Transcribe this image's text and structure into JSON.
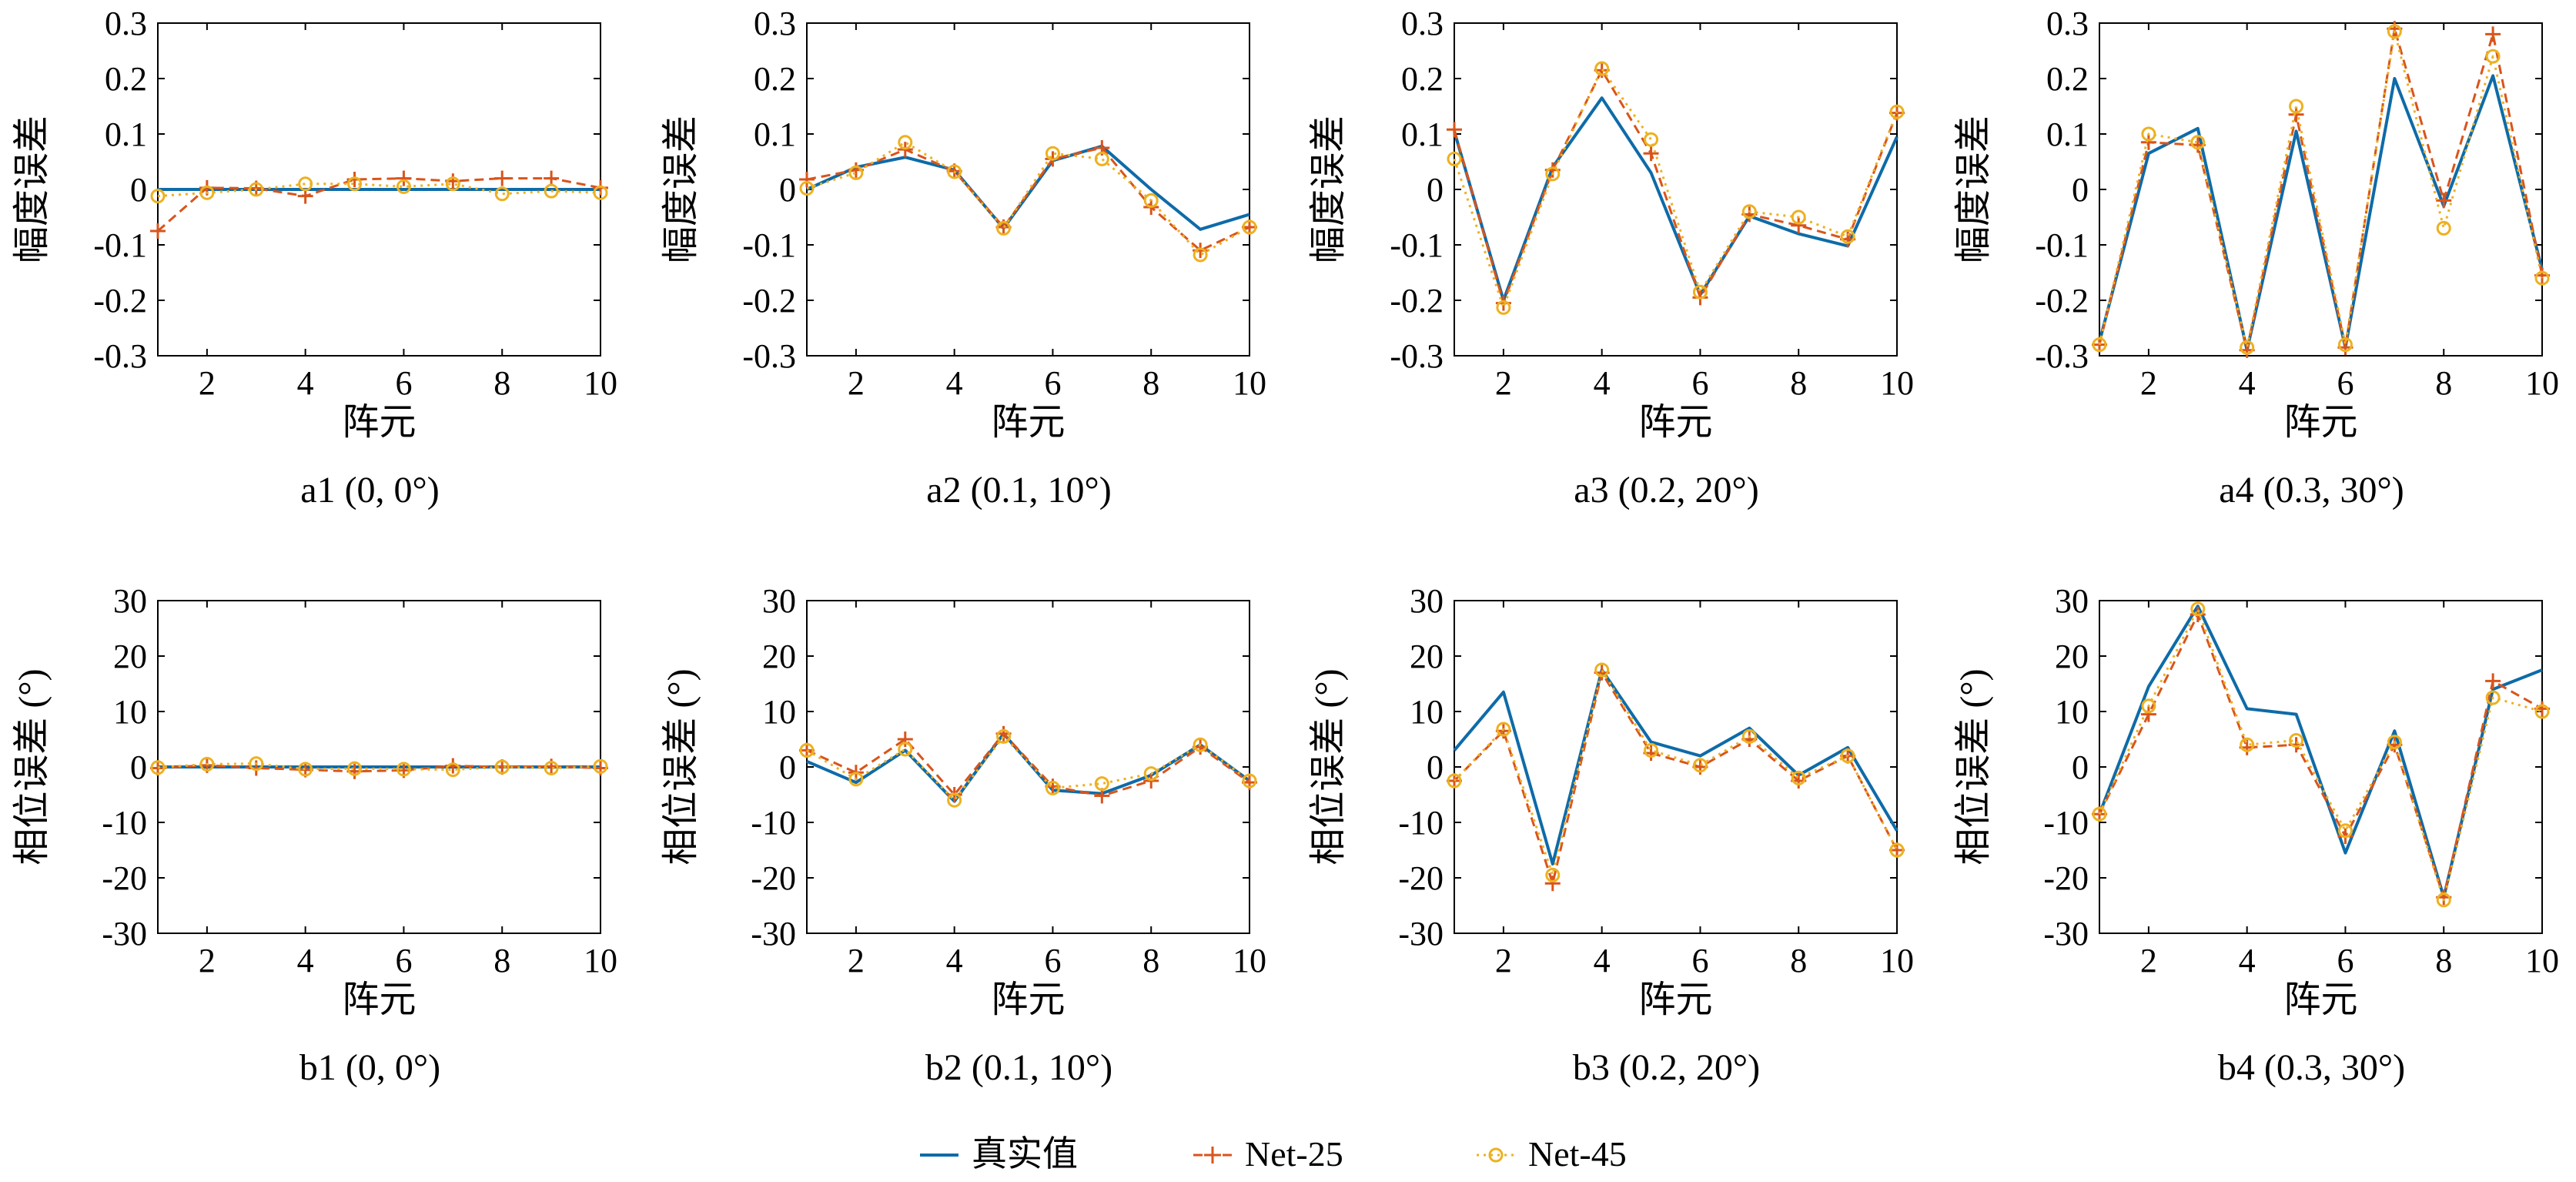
{
  "colors": {
    "truth": "#0e6ba8",
    "net25": "#d9541b",
    "net45": "#edb120"
  },
  "legend": {
    "truth": "真实值",
    "net25": "Net-25",
    "net45": "Net-45"
  },
  "chart_data": [
    {
      "type": "line",
      "caption": "a1 (0, 0°)",
      "xlabel": "阵元",
      "ylabel": "幅度误差",
      "xlim": [
        1,
        10
      ],
      "ylim": [
        -0.3,
        0.3
      ],
      "xticks": [
        "2",
        "4",
        "6",
        "8",
        "10"
      ],
      "yticks": [
        "0.3",
        "0.2",
        "0.1",
        "0",
        "-0.1",
        "-0.2",
        "-0.3"
      ],
      "x": [
        1,
        2,
        3,
        4,
        5,
        6,
        7,
        8,
        9,
        10
      ],
      "series": [
        {
          "name": "真实值",
          "values": [
            0,
            0,
            0,
            0,
            0,
            0,
            0,
            0,
            0,
            0
          ]
        },
        {
          "name": "Net-25",
          "values": [
            -0.075,
            0.003,
            0.002,
            -0.012,
            0.018,
            0.02,
            0.015,
            0.02,
            0.02,
            0.003
          ]
        },
        {
          "name": "Net-45",
          "values": [
            -0.012,
            -0.006,
            0.0,
            0.01,
            0.01,
            0.005,
            0.01,
            -0.008,
            -0.003,
            -0.006
          ]
        }
      ]
    },
    {
      "type": "line",
      "caption": "a2 (0.1, 10°)",
      "xlabel": "阵元",
      "ylabel": "幅度误差",
      "xlim": [
        1,
        10
      ],
      "ylim": [
        -0.3,
        0.3
      ],
      "xticks": [
        "2",
        "4",
        "6",
        "8",
        "10"
      ],
      "yticks": [
        "0.3",
        "0.2",
        "0.1",
        "0",
        "-0.1",
        "-0.2",
        "-0.3"
      ],
      "x": [
        1,
        2,
        3,
        4,
        5,
        6,
        7,
        8,
        9,
        10
      ],
      "series": [
        {
          "name": "真实值",
          "values": [
            0.0,
            0.04,
            0.058,
            0.035,
            -0.07,
            0.052,
            0.078,
            0.0,
            -0.072,
            -0.045
          ]
        },
        {
          "name": "Net-25",
          "values": [
            0.018,
            0.035,
            0.072,
            0.033,
            -0.068,
            0.055,
            0.075,
            -0.032,
            -0.11,
            -0.068
          ]
        },
        {
          "name": "Net-45",
          "values": [
            0.002,
            0.03,
            0.085,
            0.032,
            -0.07,
            0.065,
            0.055,
            -0.02,
            -0.118,
            -0.068
          ]
        }
      ]
    },
    {
      "type": "line",
      "caption": "a3 (0.2, 20°)",
      "xlabel": "阵元",
      "ylabel": "幅度误差",
      "xlim": [
        1,
        10
      ],
      "ylim": [
        -0.3,
        0.3
      ],
      "xticks": [
        "2",
        "4",
        "6",
        "8",
        "10"
      ],
      "yticks": [
        "0.3",
        "0.2",
        "0.1",
        "0",
        "-0.1",
        "-0.2",
        "-0.3"
      ],
      "x": [
        1,
        2,
        3,
        4,
        5,
        6,
        7,
        8,
        9,
        10
      ],
      "series": [
        {
          "name": "真实值",
          "values": [
            0.105,
            -0.2,
            0.04,
            0.165,
            0.03,
            -0.19,
            -0.048,
            -0.08,
            -0.102,
            0.095
          ]
        },
        {
          "name": "Net-25",
          "values": [
            0.108,
            -0.205,
            0.035,
            0.215,
            0.065,
            -0.195,
            -0.045,
            -0.065,
            -0.09,
            0.138
          ]
        },
        {
          "name": "Net-45",
          "values": [
            0.055,
            -0.213,
            0.028,
            0.218,
            0.09,
            -0.185,
            -0.04,
            -0.05,
            -0.085,
            0.14
          ]
        }
      ]
    },
    {
      "type": "line",
      "caption": "a4 (0.3, 30°)",
      "xlabel": "阵元",
      "ylabel": "幅度误差",
      "xlim": [
        1,
        10
      ],
      "ylim": [
        -0.3,
        0.3
      ],
      "xticks": [
        "2",
        "4",
        "6",
        "8",
        "10"
      ],
      "yticks": [
        "0.3",
        "0.2",
        "0.1",
        "0",
        "-0.1",
        "-0.2",
        "-0.3"
      ],
      "x": [
        1,
        2,
        3,
        4,
        5,
        6,
        7,
        8,
        9,
        10
      ],
      "series": [
        {
          "name": "真实值",
          "values": [
            -0.275,
            0.065,
            0.11,
            -0.29,
            0.105,
            -0.285,
            0.2,
            -0.03,
            0.205,
            -0.145
          ]
        },
        {
          "name": "Net-25",
          "values": [
            -0.28,
            0.085,
            0.08,
            -0.29,
            0.135,
            -0.285,
            0.29,
            -0.02,
            0.28,
            -0.155
          ]
        },
        {
          "name": "Net-45",
          "values": [
            -0.28,
            0.1,
            0.085,
            -0.285,
            0.15,
            -0.28,
            0.285,
            -0.07,
            0.24,
            -0.16
          ]
        }
      ]
    },
    {
      "type": "line",
      "caption": "b1 (0, 0°)",
      "xlabel": "阵元",
      "ylabel": "相位误差 (°)",
      "xlim": [
        1,
        10
      ],
      "ylim": [
        -30,
        30
      ],
      "xticks": [
        "2",
        "4",
        "6",
        "8",
        "10"
      ],
      "yticks": [
        "30",
        "20",
        "10",
        "0",
        "-10",
        "-20",
        "-30"
      ],
      "x": [
        1,
        2,
        3,
        4,
        5,
        6,
        7,
        8,
        9,
        10
      ],
      "series": [
        {
          "name": "真实值",
          "values": [
            0,
            0,
            0,
            0,
            0,
            0,
            0,
            0,
            0,
            0
          ]
        },
        {
          "name": "Net-25",
          "values": [
            -0.2,
            0.3,
            -0.2,
            -0.5,
            -0.8,
            -0.6,
            0.2,
            0.0,
            0.1,
            -0.2
          ]
        },
        {
          "name": "Net-45",
          "values": [
            -0.1,
            0.5,
            0.6,
            -0.4,
            -0.3,
            -0.4,
            -0.5,
            0.0,
            -0.2,
            0.1
          ]
        }
      ]
    },
    {
      "type": "line",
      "caption": "b2 (0.1, 10°)",
      "xlabel": "阵元",
      "ylabel": "相位误差 (°)",
      "xlim": [
        1,
        10
      ],
      "ylim": [
        -30,
        30
      ],
      "xticks": [
        "2",
        "4",
        "6",
        "8",
        "10"
      ],
      "yticks": [
        "30",
        "20",
        "10",
        "0",
        "-10",
        "-20",
        "-30"
      ],
      "x": [
        1,
        2,
        3,
        4,
        5,
        6,
        7,
        8,
        9,
        10
      ],
      "series": [
        {
          "name": "真实值",
          "values": [
            1.0,
            -2.8,
            3.0,
            -6.2,
            6.0,
            -4.2,
            -4.8,
            -1.5,
            4.0,
            -2.5
          ]
        },
        {
          "name": "Net-25",
          "values": [
            3.0,
            -1.0,
            5.0,
            -5.0,
            6.0,
            -3.5,
            -5.2,
            -2.5,
            3.6,
            -2.8
          ]
        },
        {
          "name": "Net-45",
          "values": [
            3.0,
            -2.2,
            3.2,
            -6.0,
            5.5,
            -3.8,
            -3.0,
            -1.2,
            4.0,
            -2.5
          ]
        }
      ]
    },
    {
      "type": "line",
      "caption": "b3 (0.2, 20°)",
      "xlabel": "阵元",
      "ylabel": "相位误差 (°)",
      "xlim": [
        1,
        10
      ],
      "ylim": [
        -30,
        30
      ],
      "xticks": [
        "2",
        "4",
        "6",
        "8",
        "10"
      ],
      "yticks": [
        "30",
        "20",
        "10",
        "0",
        "-10",
        "-20",
        "-30"
      ],
      "x": [
        1,
        2,
        3,
        4,
        5,
        6,
        7,
        8,
        9,
        10
      ],
      "series": [
        {
          "name": "真实值",
          "values": [
            3.0,
            13.5,
            -17.5,
            17.5,
            4.5,
            2.0,
            7.0,
            -1.5,
            3.5,
            -11.5
          ]
        },
        {
          "name": "Net-25",
          "values": [
            -2.5,
            6.5,
            -21.0,
            17.0,
            2.5,
            0.0,
            5.0,
            -2.5,
            2.0,
            -15.0
          ]
        },
        {
          "name": "Net-45",
          "values": [
            -2.5,
            6.8,
            -19.5,
            17.5,
            3.0,
            0.3,
            5.5,
            -2.0,
            2.0,
            -15.0
          ]
        }
      ]
    },
    {
      "type": "line",
      "caption": "b4 (0.3, 30°)",
      "xlabel": "阵元",
      "ylabel": "相位误差 (°)",
      "xlim": [
        1,
        10
      ],
      "ylim": [
        -30,
        30
      ],
      "xticks": [
        "2",
        "4",
        "6",
        "8",
        "10"
      ],
      "yticks": [
        "30",
        "20",
        "10",
        "0",
        "-10",
        "-20",
        "-30"
      ],
      "x": [
        1,
        2,
        3,
        4,
        5,
        6,
        7,
        8,
        9,
        10
      ],
      "series": [
        {
          "name": "真实值",
          "values": [
            -8.5,
            14.5,
            29.0,
            10.5,
            9.5,
            -15.5,
            6.5,
            -23.5,
            14.0,
            17.5
          ]
        },
        {
          "name": "Net-25",
          "values": [
            -8.5,
            9.5,
            27.5,
            3.5,
            4.0,
            -12.5,
            4.0,
            -23.5,
            15.5,
            10.5
          ]
        },
        {
          "name": "Net-45",
          "values": [
            -8.5,
            11.0,
            28.5,
            4.0,
            4.8,
            -11.5,
            4.5,
            -24.0,
            12.5,
            10.0
          ]
        }
      ]
    }
  ]
}
